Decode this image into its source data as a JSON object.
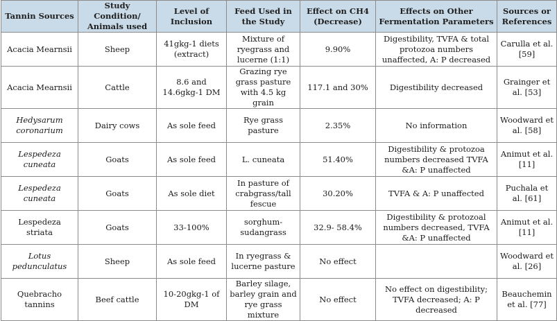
{
  "headers": [
    "Tannin Sources",
    "Study Condition/ Animals used",
    "Level of Inclusion",
    "Feed Used in the Study",
    "Effect on CH4 (Decrease)",
    "Effects on Other Fermentation Parameters",
    "Sources or References"
  ],
  "rows": [
    {
      "source": "Acacia Mearnsii",
      "animal": "Sheep",
      "level": "41gkg-1 diets (extract)",
      "feed": "Mixture of ryegrass and lucerne (1:1)",
      "ch4": "9.90%",
      "other": "Digestibility, TVFA & total protozoa numbers unaffected, A: P decreased",
      "ref": "Carulla et al. [59]"
    },
    {
      "source": "Acacia Mearnsii",
      "animal": "Cattle",
      "level": "8.6 and 14.6gkg-1 DM",
      "feed": "Grazing rye grass pasture with 4.5 kg grain",
      "ch4": "117.1 and 30%",
      "other": "Digestibility decreased",
      "ref": "Grainger et al. [53]"
    },
    {
      "source": "Hedysarum coronarium",
      "animal": "Dairy cows",
      "level": "As sole feed",
      "feed": "Rye grass pasture",
      "ch4": "2.35%",
      "other": "No information",
      "ref": "Woodward et al. [58]"
    },
    {
      "source": "Lespedeza cuneata",
      "animal": "Goats",
      "level": "As sole feed",
      "feed": "L. cuneata",
      "ch4": "51.40%",
      "other": "Digestibility & protozoa numbers decreased TVFA &A: P unaffected",
      "ref": "Animut et al. [11]"
    },
    {
      "source": "Lespedeza cuneata",
      "animal": "Goats",
      "level": "As sole diet",
      "feed": "In pasture of crabgrass/tall fescue",
      "ch4": "30.20%",
      "other": "TVFA & A: P unaffected",
      "ref": "Puchala et al. [61]"
    },
    {
      "source": "Lespedeza striata",
      "animal": "Goats",
      "level": "33-100%",
      "feed": "sorghum-sudangrass",
      "ch4": "32.9- 58.4%",
      "other": "Digestibility & protozoal numbers decreased, TVFA &A: P unaffected",
      "ref": "Animut et al. [11]"
    },
    {
      "source": "Lotus pedunculatus",
      "animal": "Sheep",
      "level": "As sole feed",
      "feed": "In ryegrass & lucerne pasture",
      "ch4": "No effect",
      "other": "",
      "ref": "Woodward et al. [26]"
    },
    {
      "source": "Quebracho tannins",
      "animal": "Beef cattle",
      "level": "10-20gkg-1 of DM",
      "feed": "Barley silage, barley grain and rye grass mixture",
      "ch4": "No effect",
      "other": "No effect on digestibility; TVFA decreased; A: P decreased",
      "ref": "Beauchemin et al. [77]"
    }
  ]
}
